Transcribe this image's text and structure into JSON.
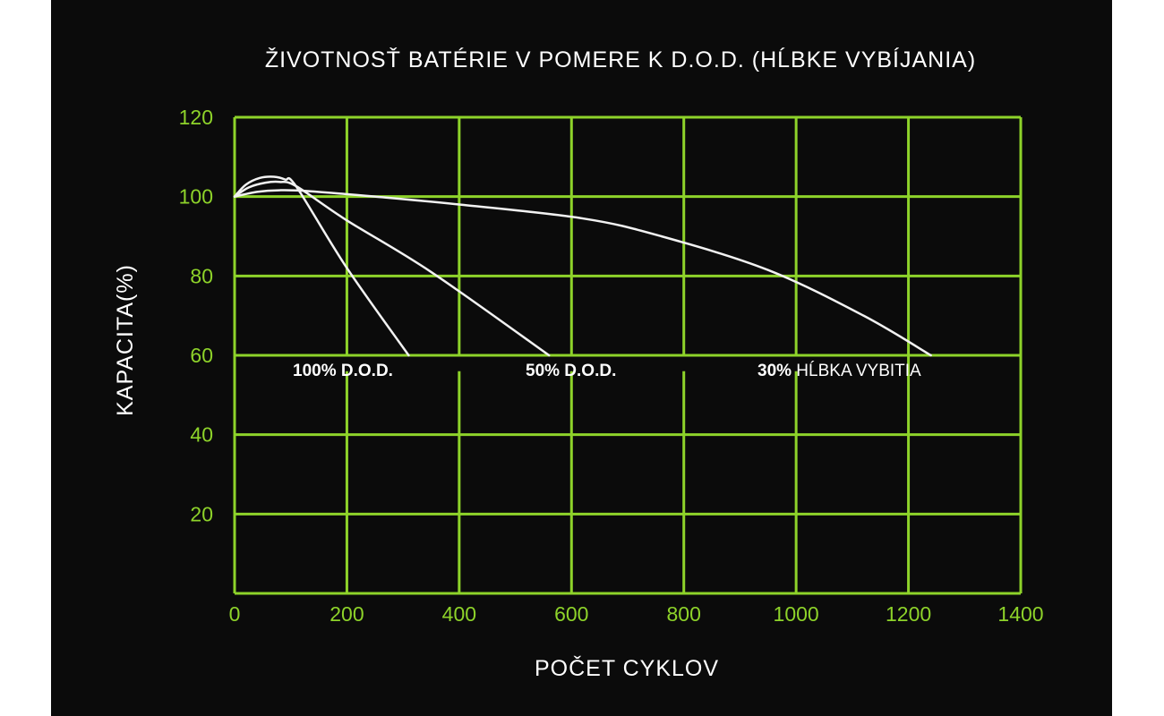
{
  "chart_data": {
    "type": "line",
    "title": "ŽIVOTNOSŤ BATÉRIE V POMERE K D.O.D. (HĹBKE VYBÍJANIA)",
    "xlabel": "POČET CYKLOV",
    "ylabel": "KAPACITA(%)",
    "xlim": [
      0,
      1400
    ],
    "ylim": [
      0,
      120
    ],
    "x_ticks": [
      "0",
      "200",
      "400",
      "600",
      "800",
      "1000",
      "1200",
      "1400"
    ],
    "y_ticks": [
      "20",
      "40",
      "60",
      "80",
      "100",
      "120"
    ],
    "grid": true,
    "colors": {
      "background": "#0b0b0b",
      "grid": "#8ed32a",
      "lines": "#f2f2f2",
      "text": "#ffffff"
    },
    "series": [
      {
        "name": "100% D.O.D.",
        "label_bold": "100%",
        "label_rest": " D.O.D.",
        "x": [
          0,
          20,
          45,
          70,
          90,
          110,
          200,
          310
        ],
        "y": [
          100,
          103,
          104.7,
          105,
          104.3,
          102.5,
          82,
          60
        ]
      },
      {
        "name": "50% D.O.D.",
        "label_bold": "50%",
        "label_rest": " D.O.D.",
        "x": [
          0,
          25,
          55,
          80,
          110,
          200,
          350,
          560
        ],
        "y": [
          100,
          102.3,
          103.5,
          103.7,
          102.6,
          94,
          81,
          60
        ]
      },
      {
        "name": "30% HĹBKA VYBITIA",
        "label_bold": "30%",
        "label_rest": " HĹBKA VYBITIA",
        "x": [
          0,
          40,
          80,
          130,
          250,
          400,
          620,
          760,
          950,
          1120,
          1240
        ],
        "y": [
          100,
          101.2,
          101.6,
          101.4,
          100,
          98,
          94.5,
          90,
          81.5,
          70,
          60
        ]
      }
    ]
  }
}
